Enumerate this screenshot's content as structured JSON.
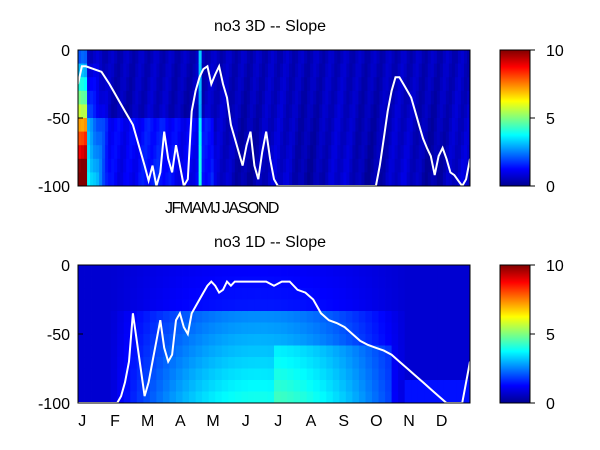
{
  "colors": {
    "background": "#ffffff",
    "line": "#ffffff",
    "axis": "#000000"
  },
  "chart_data": [
    {
      "type": "heatmap",
      "title": "no3 3D   -- Slope",
      "yticks": [
        "0",
        "-50",
        "-100"
      ],
      "ylim": [
        -100,
        0
      ],
      "xtick_text": "JFMAMJ JASOND",
      "colorbar": {
        "colormap": "jet",
        "range": [
          0,
          10
        ],
        "ticks": [
          "10",
          "5",
          "0"
        ]
      },
      "line_depth_x": [
        0.0,
        0.01,
        0.02,
        0.06,
        0.08,
        0.09,
        0.1,
        0.12,
        0.14,
        0.15,
        0.16,
        0.17,
        0.18,
        0.19,
        0.2,
        0.21,
        0.22,
        0.23,
        0.24,
        0.25,
        0.26,
        0.27,
        0.28,
        0.29,
        0.3,
        0.31,
        0.32,
        0.33,
        0.34,
        0.35,
        0.36,
        0.37,
        0.38,
        0.39,
        0.4,
        0.41,
        0.42,
        0.43,
        0.44,
        0.45,
        0.46,
        0.47,
        0.48,
        0.49,
        0.5,
        0.51,
        0.52,
        0.53,
        0.54,
        0.55,
        0.56,
        0.57,
        0.58,
        0.59,
        0.6,
        0.61,
        0.62,
        0.63,
        0.64,
        0.65,
        0.66,
        0.67,
        0.68,
        0.69,
        0.7,
        0.71,
        0.72,
        0.73,
        0.74,
        0.75,
        0.76,
        0.77,
        0.78,
        0.79,
        0.8,
        0.81,
        0.82,
        0.83,
        0.84,
        0.85,
        0.86,
        0.87,
        0.88,
        0.89,
        0.9,
        0.91,
        0.92,
        0.93,
        0.94,
        0.95,
        0.96,
        0.97,
        0.98,
        0.99,
        1.0
      ],
      "line_depth_y": [
        -25,
        -12,
        -12,
        -16,
        -25,
        -30,
        -35,
        -45,
        -55,
        -65,
        -75,
        -85,
        -96,
        -85,
        -100,
        -90,
        -60,
        -80,
        -90,
        -70,
        -85,
        -100,
        -95,
        -45,
        -30,
        -20,
        -14,
        -12,
        -25,
        -18,
        -12,
        -25,
        -35,
        -55,
        -65,
        -75,
        -85,
        -70,
        -60,
        -85,
        -95,
        -75,
        -60,
        -80,
        -95,
        -100,
        -100,
        -100,
        -100,
        -100,
        -100,
        -100,
        -100,
        -100,
        -100,
        -100,
        -100,
        -100,
        -100,
        -100,
        -100,
        -100,
        -100,
        -100,
        -100,
        -100,
        -100,
        -100,
        -100,
        -100,
        -100,
        -85,
        -65,
        -45,
        -30,
        -20,
        -20,
        -25,
        -30,
        -35,
        -45,
        -55,
        -65,
        -72,
        -78,
        -92,
        -78,
        -72,
        -80,
        -90,
        -92,
        -96,
        -100,
        -95,
        -80
      ]
    },
    {
      "type": "heatmap",
      "title": "no3 1D   -- Slope",
      "yticks": [
        "0",
        "-50",
        "-100"
      ],
      "ylim": [
        -100,
        0
      ],
      "xticks": [
        "J",
        "F",
        "M",
        "A",
        "M",
        "J",
        "J",
        "A",
        "S",
        "O",
        "N",
        "D"
      ],
      "colorbar": {
        "colormap": "jet",
        "range": [
          0,
          10
        ],
        "ticks": [
          "10",
          "5",
          "0"
        ]
      },
      "line_depth_x": [
        0.0,
        0.02,
        0.05,
        0.08,
        0.1,
        0.11,
        0.12,
        0.13,
        0.14,
        0.15,
        0.16,
        0.17,
        0.18,
        0.19,
        0.2,
        0.21,
        0.22,
        0.23,
        0.24,
        0.25,
        0.26,
        0.27,
        0.28,
        0.29,
        0.3,
        0.31,
        0.32,
        0.33,
        0.34,
        0.35,
        0.36,
        0.37,
        0.38,
        0.39,
        0.4,
        0.42,
        0.44,
        0.46,
        0.48,
        0.5,
        0.52,
        0.54,
        0.56,
        0.58,
        0.6,
        0.62,
        0.64,
        0.66,
        0.68,
        0.7,
        0.72,
        0.74,
        0.76,
        0.78,
        0.8,
        0.82,
        0.84,
        0.86,
        0.88,
        0.9,
        0.92,
        0.94,
        0.96,
        0.98,
        1.0
      ],
      "line_depth_y": [
        -100,
        -100,
        -100,
        -100,
        -100,
        -95,
        -85,
        -70,
        -35,
        -55,
        -75,
        -95,
        -85,
        -70,
        -55,
        -40,
        -60,
        -70,
        -65,
        -40,
        -35,
        -45,
        -50,
        -35,
        -30,
        -25,
        -20,
        -15,
        -12,
        -15,
        -20,
        -18,
        -12,
        -15,
        -12,
        -12,
        -12,
        -12,
        -12,
        -15,
        -12,
        -12,
        -18,
        -20,
        -25,
        -35,
        -40,
        -42,
        -45,
        -50,
        -55,
        -58,
        -60,
        -62,
        -65,
        -70,
        -75,
        -80,
        -85,
        -90,
        -95,
        -100,
        -100,
        -100,
        -70
      ]
    }
  ]
}
